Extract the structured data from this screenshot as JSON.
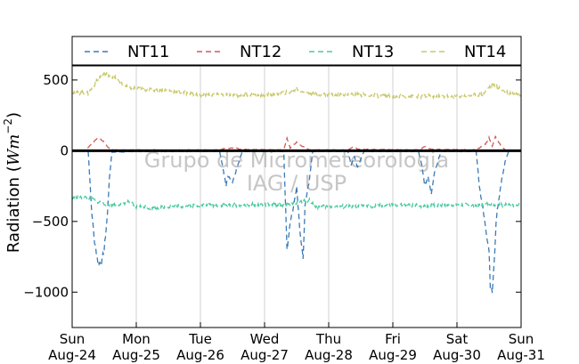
{
  "chart_data": {
    "type": "line",
    "ylabel": "Radiation ($Wm^{-2}$)",
    "ylabel_main": "Radiation (",
    "ylabel_math_W": "Wm",
    "ylabel_math_exp": "−2",
    "ylabel_close": ")",
    "ylim": [
      -1250,
      600
    ],
    "yticks": [
      -1000,
      -500,
      0,
      500
    ],
    "ytick_labels": [
      "−1000",
      "−500",
      "0",
      "500"
    ],
    "xlim": [
      0,
      7
    ],
    "xticks": [
      0,
      1,
      2,
      3,
      4,
      5,
      6,
      7
    ],
    "xtick_labels_day": [
      "Sun",
      "Mon",
      "Tue",
      "Wed",
      "Thu",
      "Fri",
      "Sat",
      "Sun"
    ],
    "xtick_labels_date": [
      "Aug-24",
      "Aug-25",
      "Aug-26",
      "Aug-27",
      "Aug-28",
      "Aug-29",
      "Aug-30",
      "Aug-31"
    ],
    "grid": "vertical",
    "legend_position": "top",
    "zero_line": true,
    "watermark": [
      "Grupo de Micrometeorologia",
      "IAG / USP"
    ],
    "series": [
      {
        "name": "NT11",
        "color": "#3a7ab8",
        "dash": "6,4",
        "keypoints": [
          [
            0.25,
            -5
          ],
          [
            0.27,
            -150
          ],
          [
            0.3,
            -400
          ],
          [
            0.35,
            -650
          ],
          [
            0.4,
            -780
          ],
          [
            0.45,
            -800
          ],
          [
            0.5,
            -700
          ],
          [
            0.55,
            -450
          ],
          [
            0.58,
            -200
          ],
          [
            0.62,
            -10
          ],
          [
            1.0,
            -5
          ],
          [
            1.5,
            -5
          ],
          [
            2.3,
            -5
          ],
          [
            2.35,
            -120
          ],
          [
            2.4,
            -250
          ],
          [
            2.43,
            -180
          ],
          [
            2.5,
            -220
          ],
          [
            2.55,
            -150
          ],
          [
            2.6,
            -80
          ],
          [
            2.65,
            -5
          ],
          [
            3.3,
            -5
          ],
          [
            3.32,
            -300
          ],
          [
            3.35,
            -700
          ],
          [
            3.4,
            -500
          ],
          [
            3.45,
            -400
          ],
          [
            3.5,
            -250
          ],
          [
            3.55,
            -550
          ],
          [
            3.6,
            -780
          ],
          [
            3.63,
            -400
          ],
          [
            3.7,
            -200
          ],
          [
            3.75,
            -5
          ],
          [
            4.3,
            -5
          ],
          [
            4.35,
            -100
          ],
          [
            4.4,
            -40
          ],
          [
            4.45,
            -120
          ],
          [
            4.5,
            -60
          ],
          [
            4.55,
            -5
          ],
          [
            5.4,
            -5
          ],
          [
            5.45,
            -100
          ],
          [
            5.5,
            -250
          ],
          [
            5.55,
            -180
          ],
          [
            5.6,
            -300
          ],
          [
            5.65,
            -150
          ],
          [
            5.7,
            -80
          ],
          [
            5.75,
            -5
          ],
          [
            6.3,
            -5
          ],
          [
            6.35,
            -250
          ],
          [
            6.4,
            -400
          ],
          [
            6.45,
            -550
          ],
          [
            6.5,
            -700
          ],
          [
            6.52,
            -950
          ],
          [
            6.55,
            -1000
          ],
          [
            6.58,
            -800
          ],
          [
            6.6,
            -600
          ],
          [
            6.62,
            -450
          ],
          [
            6.65,
            -350
          ],
          [
            6.7,
            -200
          ],
          [
            6.75,
            -80
          ],
          [
            6.8,
            -10
          ]
        ]
      },
      {
        "name": "NT12",
        "color": "#d05a5a",
        "dash": "6,4",
        "keypoints": [
          [
            0.0,
            0
          ],
          [
            0.2,
            0
          ],
          [
            0.3,
            50
          ],
          [
            0.4,
            90
          ],
          [
            0.45,
            80
          ],
          [
            0.5,
            60
          ],
          [
            0.55,
            30
          ],
          [
            0.6,
            5
          ],
          [
            1.0,
            5
          ],
          [
            1.5,
            5
          ],
          [
            2.3,
            5
          ],
          [
            2.4,
            20
          ],
          [
            2.45,
            15
          ],
          [
            2.55,
            25
          ],
          [
            2.6,
            10
          ],
          [
            3.3,
            5
          ],
          [
            3.35,
            90
          ],
          [
            3.4,
            20
          ],
          [
            3.45,
            40
          ],
          [
            3.5,
            60
          ],
          [
            3.55,
            40
          ],
          [
            3.6,
            30
          ],
          [
            3.7,
            5
          ],
          [
            4.3,
            5
          ],
          [
            4.35,
            20
          ],
          [
            4.4,
            30
          ],
          [
            4.45,
            10
          ],
          [
            5.4,
            5
          ],
          [
            5.5,
            30
          ],
          [
            5.6,
            10
          ],
          [
            6.3,
            5
          ],
          [
            6.45,
            50
          ],
          [
            6.5,
            90
          ],
          [
            6.55,
            30
          ],
          [
            6.6,
            100
          ],
          [
            6.65,
            60
          ],
          [
            6.7,
            30
          ],
          [
            6.75,
            5
          ]
        ]
      },
      {
        "name": "NT13",
        "color": "#48c9a0",
        "dash": "6,4",
        "keypoints": [
          [
            0.0,
            -335
          ],
          [
            0.25,
            -330
          ],
          [
            0.4,
            -360
          ],
          [
            0.55,
            -380
          ],
          [
            0.65,
            -385
          ],
          [
            0.8,
            -370
          ],
          [
            0.9,
            -360
          ],
          [
            1.0,
            -400
          ],
          [
            1.1,
            -390
          ],
          [
            1.2,
            -405
          ],
          [
            1.4,
            -400
          ],
          [
            1.6,
            -395
          ],
          [
            2.0,
            -385
          ],
          [
            2.5,
            -385
          ],
          [
            3.0,
            -380
          ],
          [
            3.4,
            -385
          ],
          [
            3.5,
            -370
          ],
          [
            3.6,
            -355
          ],
          [
            3.7,
            -350
          ],
          [
            3.8,
            -395
          ],
          [
            4.5,
            -395
          ],
          [
            5.0,
            -385
          ],
          [
            5.5,
            -390
          ],
          [
            6.0,
            -380
          ],
          [
            6.4,
            -390
          ],
          [
            6.5,
            -370
          ],
          [
            6.6,
            -380
          ],
          [
            6.7,
            -385
          ],
          [
            7.0,
            -385
          ]
        ]
      },
      {
        "name": "NT14",
        "color": "#c8c86a",
        "dash": "6,4",
        "keypoints": [
          [
            0.0,
            415
          ],
          [
            0.25,
            405
          ],
          [
            0.35,
            470
          ],
          [
            0.45,
            530
          ],
          [
            0.55,
            545
          ],
          [
            0.65,
            520
          ],
          [
            0.75,
            480
          ],
          [
            0.85,
            450
          ],
          [
            1.0,
            440
          ],
          [
            1.2,
            430
          ],
          [
            1.5,
            425
          ],
          [
            2.0,
            395
          ],
          [
            2.5,
            395
          ],
          [
            3.0,
            395
          ],
          [
            3.3,
            410
          ],
          [
            3.45,
            420
          ],
          [
            3.5,
            440
          ],
          [
            3.6,
            420
          ],
          [
            3.8,
            400
          ],
          [
            4.5,
            395
          ],
          [
            5.0,
            385
          ],
          [
            5.5,
            385
          ],
          [
            6.0,
            385
          ],
          [
            6.4,
            400
          ],
          [
            6.5,
            450
          ],
          [
            6.55,
            465
          ],
          [
            6.6,
            455
          ],
          [
            6.7,
            430
          ],
          [
            6.8,
            410
          ],
          [
            7.0,
            400
          ]
        ]
      }
    ]
  }
}
